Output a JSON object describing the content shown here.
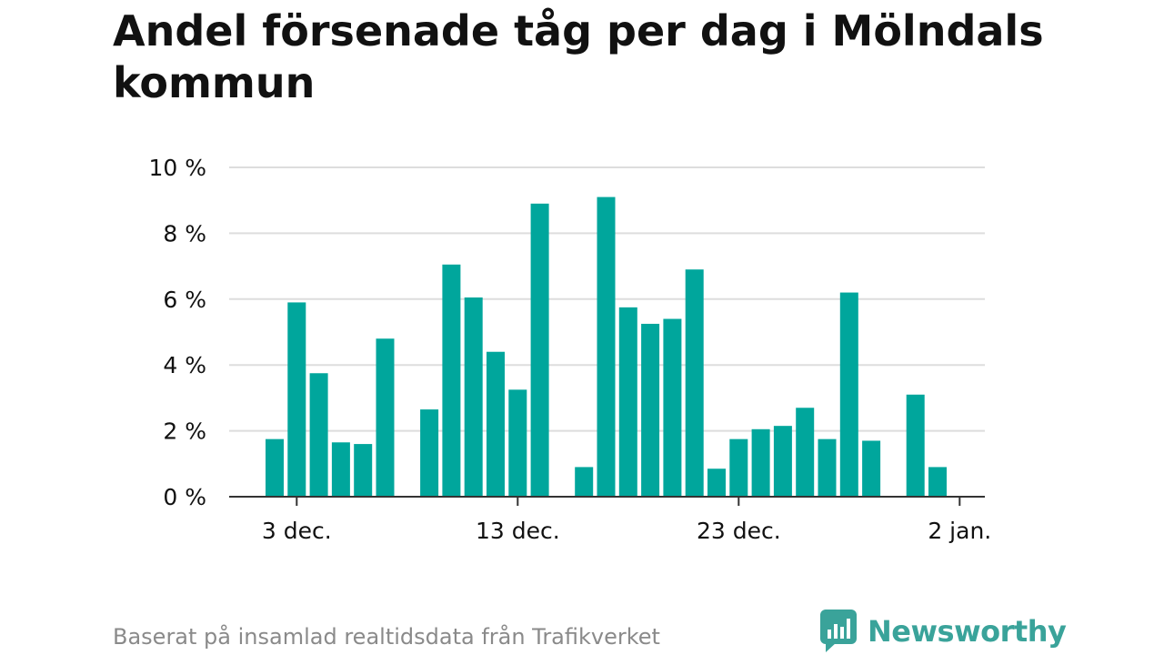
{
  "title": "Andel försenade tåg per dag i Mölndals kommun",
  "caption": "Baserat på insamlad realtidsdata från Trafikverket",
  "brand": {
    "name": "Newsworthy",
    "icon": "newsworthy-chart-logo-icon"
  },
  "colors": {
    "bar": "#00a69c",
    "grid": "#dddddd",
    "axis": "#333333",
    "text": "#111111",
    "brand": "#3aa39a"
  },
  "chart_data": {
    "type": "bar",
    "title": "Andel försenade tåg per dag i Mölndals kommun",
    "xlabel": "",
    "ylabel": "",
    "ylim": [
      0,
      10
    ],
    "yticks": [
      0,
      2,
      4,
      6,
      8,
      10
    ],
    "ytick_labels": [
      "0 %",
      "2 %",
      "4 %",
      "6 %",
      "8 %",
      "10 %"
    ],
    "xtick_labels": [
      "3 dec.",
      "13 dec.",
      "23 dec.",
      "2 jan."
    ],
    "xtick_days": [
      3,
      13,
      23,
      33
    ],
    "x_days": [
      2,
      3,
      4,
      5,
      6,
      7,
      9,
      10,
      11,
      12,
      13,
      14,
      16,
      17,
      18,
      19,
      20,
      21,
      22,
      23,
      24,
      25,
      26,
      27,
      28,
      29,
      31,
      32
    ],
    "categories": [
      "2 dec.",
      "3 dec.",
      "4 dec.",
      "5 dec.",
      "6 dec.",
      "7 dec.",
      "9 dec.",
      "10 dec.",
      "11 dec.",
      "12 dec.",
      "13 dec.",
      "14 dec.",
      "16 dec.",
      "17 dec.",
      "18 dec.",
      "19 dec.",
      "20 dec.",
      "21 dec.",
      "22 dec.",
      "23 dec.",
      "24 dec.",
      "25 dec.",
      "26 dec.",
      "27 dec.",
      "28 dec.",
      "29 dec.",
      "31 dec.",
      "1 jan."
    ],
    "values": [
      1.75,
      5.9,
      3.75,
      1.65,
      1.6,
      4.8,
      2.65,
      7.05,
      6.05,
      4.4,
      3.25,
      8.9,
      0.9,
      9.1,
      5.75,
      5.25,
      5.4,
      6.9,
      0.85,
      1.75,
      2.05,
      2.15,
      2.7,
      1.75,
      6.2,
      1.7,
      3.1,
      0.9
    ],
    "grid": true,
    "legend": "none"
  }
}
